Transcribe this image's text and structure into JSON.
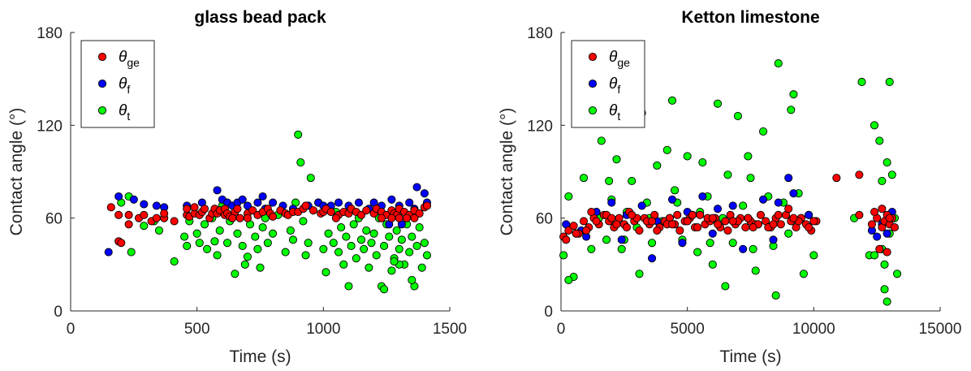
{
  "colors": {
    "ge": "#ff0000",
    "f": "#0000ff",
    "t": "#00ff00"
  },
  "chart_data": [
    {
      "type": "scatter",
      "title": "glass bead pack",
      "xlabel": "Time (s)",
      "ylabel": "Contact angle (°)",
      "xlim": [
        0,
        1500
      ],
      "ylim": [
        0,
        180
      ],
      "xticks": [
        "0",
        "500",
        "1000",
        "1500"
      ],
      "yticks": [
        "0",
        "60",
        "120",
        "180"
      ],
      "grid": false,
      "legend_placement": "top-left",
      "series": [
        {
          "name": "θge",
          "color": "#ff0000",
          "x": [
            160,
            190,
            190,
            230,
            230,
            270,
            290,
            320,
            340,
            370,
            370,
            410,
            460,
            460,
            470,
            490,
            490,
            510,
            520,
            530,
            550,
            560,
            570,
            580,
            590,
            610,
            610,
            620,
            630,
            650,
            660,
            670,
            700,
            720,
            740,
            760,
            780,
            790,
            800,
            830,
            850,
            860,
            880,
            900,
            920,
            930,
            960,
            990,
            1000,
            1010,
            1030,
            1060,
            1080,
            1100,
            1110,
            1130,
            1150,
            1170,
            1200,
            1210,
            1230,
            1250,
            1270,
            1280,
            1290,
            1300,
            1320,
            1340,
            1360,
            1380,
            1400,
            1410,
            1230,
            1270,
            1330,
            1360,
            640,
            700,
            1050,
            1300,
            200
          ],
          "y": [
            67,
            45,
            62,
            56,
            62,
            60,
            62,
            58,
            60,
            60,
            63,
            58,
            62,
            66,
            61,
            63,
            67,
            62,
            64,
            66,
            60,
            63,
            66,
            63,
            65,
            62,
            66,
            63,
            61,
            64,
            66,
            60,
            63,
            65,
            62,
            64,
            66,
            63,
            61,
            65,
            63,
            62,
            64,
            64,
            66,
            68,
            65,
            63,
            64,
            66,
            64,
            62,
            64,
            63,
            66,
            64,
            62,
            65,
            63,
            66,
            64,
            62,
            65,
            63,
            62,
            66,
            64,
            62,
            65,
            63,
            67,
            68,
            60,
            60,
            60,
            60,
            60,
            60,
            60,
            60,
            44
          ]
        },
        {
          "name": "θf",
          "color": "#0000ff",
          "x": [
            150,
            190,
            250,
            290,
            340,
            370,
            460,
            520,
            580,
            600,
            620,
            640,
            660,
            680,
            700,
            740,
            760,
            770,
            800,
            840,
            880,
            940,
            980,
            1000,
            1030,
            1060,
            1100,
            1140,
            1180,
            1200,
            1230,
            1270,
            1300,
            1340,
            1360,
            1370,
            1400,
            1410,
            1260,
            1310
          ],
          "y": [
            38,
            74,
            72,
            69,
            68,
            67,
            68,
            70,
            78,
            72,
            70,
            68,
            70,
            72,
            68,
            70,
            74,
            66,
            70,
            68,
            66,
            68,
            70,
            68,
            68,
            70,
            68,
            70,
            66,
            70,
            68,
            72,
            68,
            70,
            66,
            80,
            76,
            70,
            56,
            56
          ]
        },
        {
          "name": "θt",
          "color": "#00ff00",
          "x": [
            200,
            230,
            240,
            290,
            330,
            350,
            410,
            450,
            460,
            470,
            500,
            510,
            530,
            540,
            560,
            570,
            580,
            590,
            600,
            620,
            630,
            650,
            660,
            680,
            690,
            700,
            710,
            730,
            740,
            750,
            760,
            770,
            780,
            800,
            820,
            850,
            870,
            880,
            890,
            900,
            910,
            920,
            930,
            940,
            950,
            980,
            1000,
            1010,
            1020,
            1040,
            1050,
            1060,
            1070,
            1080,
            1090,
            1100,
            1110,
            1120,
            1130,
            1140,
            1150,
            1160,
            1170,
            1180,
            1190,
            1200,
            1210,
            1220,
            1230,
            1240,
            1250,
            1260,
            1270,
            1280,
            1290,
            1300,
            1310,
            1320,
            1330,
            1340,
            1350,
            1360,
            1370,
            1380,
            1390,
            1400,
            1410,
            1300,
            1350,
            1240,
            1280
          ],
          "y": [
            70,
            74,
            38,
            55,
            58,
            52,
            32,
            48,
            42,
            58,
            50,
            44,
            56,
            40,
            60,
            45,
            36,
            52,
            68,
            44,
            58,
            24,
            50,
            42,
            30,
            35,
            56,
            48,
            40,
            28,
            54,
            60,
            44,
            50,
            62,
            38,
            52,
            46,
            70,
            114,
            96,
            58,
            36,
            44,
            86,
            70,
            40,
            25,
            50,
            44,
            64,
            38,
            54,
            30,
            48,
            16,
            42,
            56,
            34,
            60,
            46,
            40,
            52,
            28,
            44,
            50,
            36,
            60,
            16,
            42,
            56,
            48,
            26,
            34,
            52,
            40,
            46,
            30,
            56,
            38,
            48,
            16,
            42,
            54,
            28,
            44,
            36,
            30,
            20,
            14,
            32
          ]
        }
      ]
    },
    {
      "type": "scatter",
      "title": "Ketton limestone",
      "xlabel": "Time (s)",
      "ylabel": "Contact angle (°)",
      "xlim": [
        0,
        15000
      ],
      "ylim": [
        0,
        180
      ],
      "xticks": [
        "0",
        "5000",
        "10000",
        "15000"
      ],
      "yticks": [
        "0",
        "60",
        "120",
        "180"
      ],
      "grid": false,
      "legend_placement": "top-left",
      "series": [
        {
          "name": "θge",
          "color": "#ff0000",
          "x": [
            100,
            300,
            500,
            700,
            900,
            1100,
            1300,
            1500,
            1700,
            1900,
            2100,
            2300,
            2500,
            2700,
            2900,
            3100,
            3300,
            3500,
            3700,
            3900,
            4100,
            4300,
            4500,
            4700,
            4900,
            5100,
            5300,
            5500,
            5700,
            5900,
            6100,
            6300,
            6500,
            6700,
            6900,
            7100,
            7300,
            7500,
            7700,
            7900,
            8100,
            8300,
            8500,
            8700,
            8900,
            9100,
            9300,
            9500,
            9700,
            9900,
            10100,
            11800,
            12300,
            12500,
            12700,
            12800,
            12900,
            13000,
            13100,
            13200,
            200,
            600,
            1000,
            1400,
            1800,
            2200,
            2600,
            3000,
            3400,
            3800,
            4200,
            4600,
            5000,
            5400,
            5800,
            6200,
            6600,
            7000,
            7400,
            7800,
            8200,
            8600,
            9000,
            9400,
            9800,
            10900,
            11800,
            12400,
            12700,
            13000,
            1200,
            2000,
            2800,
            3600,
            4400,
            5200,
            6000,
            6800,
            7600,
            8400,
            9200,
            10000,
            12600,
            12900
          ],
          "y": [
            48,
            52,
            55,
            50,
            58,
            54,
            60,
            56,
            62,
            58,
            54,
            60,
            56,
            64,
            58,
            52,
            60,
            56,
            62,
            54,
            58,
            60,
            56,
            52,
            58,
            60,
            54,
            62,
            56,
            58,
            60,
            54,
            58,
            62,
            56,
            60,
            54,
            58,
            56,
            62,
            58,
            54,
            60,
            56,
            62,
            58,
            54,
            60,
            56,
            52,
            58,
            62,
            56,
            60,
            54,
            58,
            62,
            56,
            60,
            54,
            46,
            50,
            52,
            58,
            62,
            56,
            54,
            60,
            58,
            52,
            56,
            62,
            58,
            54,
            60,
            56,
            52,
            58,
            60,
            56,
            54,
            62,
            66,
            58,
            54,
            86,
            88,
            64,
            66,
            60,
            64,
            60,
            62,
            58,
            56,
            62,
            60,
            58,
            54,
            56,
            60,
            58,
            40,
            38
          ]
        },
        {
          "name": "θf",
          "color": "#0000ff",
          "x": [
            200,
            800,
            1400,
            2000,
            2600,
            3200,
            3800,
            4400,
            5000,
            5600,
            6200,
            6800,
            7400,
            8000,
            8600,
            9200,
            9800,
            12300,
            12700,
            13100,
            1000,
            2400,
            3600,
            4800,
            6000,
            7200,
            8400,
            9000,
            12500,
            12900
          ],
          "y": [
            56,
            52,
            64,
            70,
            62,
            68,
            58,
            72,
            64,
            74,
            66,
            68,
            60,
            72,
            70,
            76,
            62,
            52,
            56,
            64,
            48,
            46,
            34,
            44,
            50,
            40,
            46,
            86,
            48,
            50
          ]
        },
        {
          "name": "θt",
          "color": "#00ff00",
          "x": [
            100,
            300,
            600,
            900,
            1200,
            1400,
            1600,
            1800,
            2000,
            2200,
            2400,
            2600,
            2800,
            3000,
            3200,
            3400,
            3600,
            3800,
            4000,
            4200,
            4400,
            4600,
            4800,
            5000,
            5200,
            5400,
            5600,
            5800,
            6000,
            6200,
            6400,
            6600,
            6800,
            7000,
            7200,
            7400,
            7600,
            7800,
            8000,
            8200,
            8400,
            8600,
            8800,
            9000,
            9200,
            9400,
            9600,
            9800,
            10000,
            11600,
            11900,
            12200,
            12400,
            12600,
            12700,
            12800,
            12900,
            13000,
            13100,
            13200,
            13300,
            12800,
            12900,
            13000,
            500,
            1500,
            2500,
            3500,
            4500,
            5500,
            6500,
            7500,
            8500,
            9500,
            300,
            1900,
            3100,
            4300,
            5900,
            7700,
            9100,
            12400,
            12700
          ],
          "y": [
            36,
            74,
            50,
            86,
            40,
            64,
            110,
            46,
            72,
            98,
            40,
            64,
            84,
            54,
            128,
            70,
            44,
            94,
            58,
            104,
            136,
            70,
            46,
            100,
            62,
            38,
            96,
            74,
            30,
            134,
            60,
            88,
            44,
            126,
            68,
            100,
            40,
            56,
            116,
            74,
            42,
            160,
            70,
            50,
            140,
            76,
            24,
            62,
            36,
            60,
            148,
            36,
            120,
            110,
            84,
            14,
            6,
            148,
            88,
            60,
            24,
            30,
            96,
            50,
            22,
            60,
            46,
            60,
            78,
            64,
            16,
            86,
            10,
            60,
            20,
            84,
            24,
            60,
            44,
            26,
            130,
            36,
            40
          ]
        }
      ]
    }
  ]
}
